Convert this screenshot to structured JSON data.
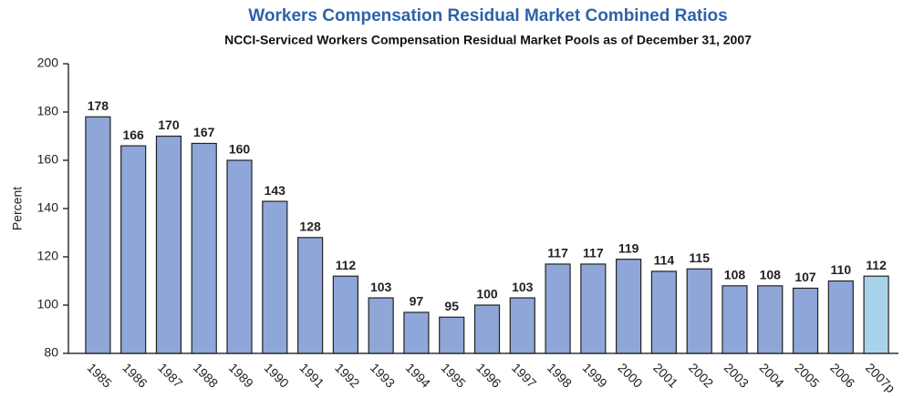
{
  "chart_data": {
    "type": "bar",
    "title": "Workers Compensation Residual Market Combined Ratios",
    "subtitle": "NCCI-Serviced Workers Compensation Residual Market Pools as of December 31, 2007",
    "y_label": "Percent",
    "categories": [
      "1985",
      "1986",
      "1987",
      "1988",
      "1989",
      "1990",
      "1991",
      "1992",
      "1993",
      "1994",
      "1995",
      "1996",
      "1997",
      "1998",
      "1999",
      "2000",
      "2001",
      "2002",
      "2003",
      "2004",
      "2005",
      "2006",
      "2007p"
    ],
    "values": [
      178,
      166,
      170,
      167,
      160,
      143,
      128,
      112,
      103,
      97,
      95,
      100,
      103,
      117,
      117,
      119,
      114,
      115,
      108,
      108,
      107,
      110,
      112
    ],
    "colors": [
      "#8fa6d8",
      "#8fa6d8",
      "#8fa6d8",
      "#8fa6d8",
      "#8fa6d8",
      "#8fa6d8",
      "#8fa6d8",
      "#8fa6d8",
      "#8fa6d8",
      "#8fa6d8",
      "#8fa6d8",
      "#8fa6d8",
      "#8fa6d8",
      "#8fa6d8",
      "#8fa6d8",
      "#8fa6d8",
      "#8fa6d8",
      "#8fa6d8",
      "#8fa6d8",
      "#8fa6d8",
      "#8fa6d8",
      "#8fa6d8",
      "#a9d3ea"
    ],
    "ylim": [
      80,
      200
    ],
    "yticks": [
      80,
      100,
      120,
      140,
      160,
      180,
      200
    ],
    "grid": false
  }
}
